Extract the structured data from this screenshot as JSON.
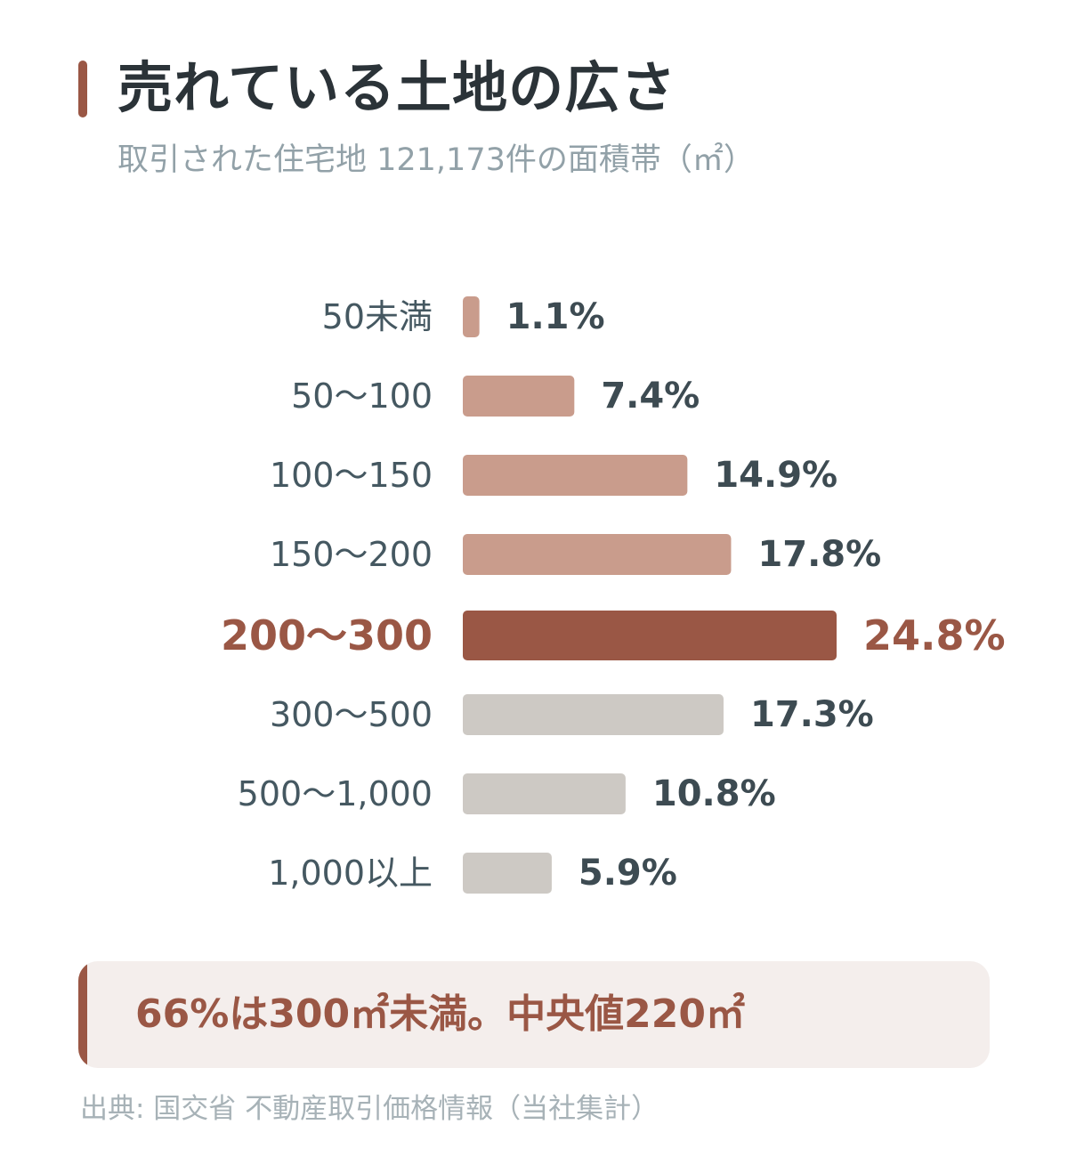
{
  "title": "売れている土地の広さ",
  "subtitle": "取引された住宅地 121,173件の面積帯（㎡）",
  "note": "66%は300㎡未満。中央値220㎡",
  "source": "出典: 国交省 不動産取引価格情報（当社集計）",
  "colors": {
    "accent": "#9a5745",
    "light_accent": "#c99c8c",
    "gray": "#cdc9c4",
    "label": "#455861",
    "value": "#3d4b52",
    "note_bg": "#f4eeec"
  },
  "chart_data": {
    "type": "bar",
    "orientation": "horizontal",
    "categories": [
      "50未満",
      "50〜100",
      "100〜150",
      "150〜200",
      "200〜300",
      "300〜500",
      "500〜1,000",
      "1,000以上"
    ],
    "values": [
      1.1,
      7.4,
      14.9,
      17.8,
      24.8,
      17.3,
      10.8,
      5.9
    ],
    "value_labels": [
      "1.1%",
      "7.4%",
      "14.9%",
      "17.8%",
      "24.8%",
      "17.3%",
      "10.8%",
      "5.9%"
    ],
    "highlight_index": 4,
    "color_groups": [
      "light_accent",
      "light_accent",
      "light_accent",
      "light_accent",
      "accent",
      "gray",
      "gray",
      "gray"
    ],
    "xlim": [
      0,
      24.8
    ],
    "grid": false,
    "legend": "none"
  }
}
